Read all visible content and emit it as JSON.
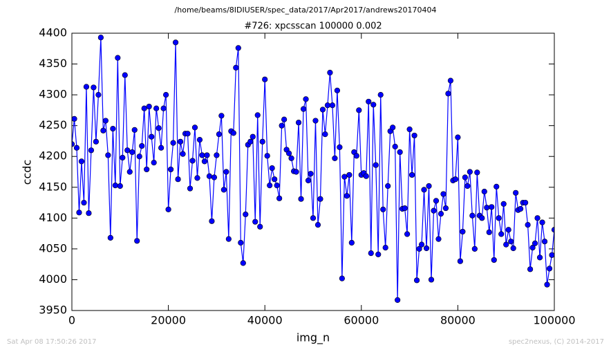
{
  "chart_data": {
    "type": "line",
    "suptitle": "/home/beams/8IDIUSER/spec_data/2017/Apr2017/andrews20170404",
    "title": "#726: xpcsscan 100000 0.002",
    "xlabel": "img_n",
    "ylabel": "ccdc",
    "footer_left": "Sat Apr 08 17:50:26 2017",
    "footer_right": "spec2nexus, (C) 2014-2017",
    "xlim": [
      0,
      100000
    ],
    "xticks": [
      0,
      20000,
      40000,
      60000,
      80000,
      100000
    ],
    "ylim": [
      3950,
      4400
    ],
    "yticks": [
      3950,
      4000,
      4050,
      4100,
      4150,
      4200,
      4250,
      4300,
      4350,
      4400
    ],
    "grid": false,
    "x": [
      0,
      500,
      1000,
      1500,
      2000,
      2500,
      3000,
      3500,
      4000,
      4500,
      5000,
      5500,
      6000,
      6500,
      7000,
      7500,
      8000,
      8500,
      9000,
      9500,
      10000,
      10500,
      11000,
      11500,
      12000,
      12500,
      13000,
      13500,
      14000,
      14500,
      15000,
      15500,
      16000,
      16500,
      17000,
      17500,
      18000,
      18500,
      19000,
      19500,
      20000,
      20500,
      21000,
      21500,
      22000,
      22500,
      23000,
      23500,
      24000,
      24500,
      25000,
      25500,
      26000,
      26500,
      27000,
      27500,
      28000,
      28500,
      29000,
      29500,
      30000,
      30500,
      31000,
      31500,
      32000,
      32500,
      33000,
      33500,
      34000,
      34500,
      35000,
      35500,
      36000,
      36500,
      37000,
      37500,
      38000,
      38500,
      39000,
      39500,
      40000,
      40500,
      41000,
      41500,
      42000,
      42500,
      43000,
      43500,
      44000,
      44500,
      45000,
      45500,
      46000,
      46500,
      47000,
      47500,
      48000,
      48500,
      49000,
      49500,
      50000,
      50500,
      51000,
      51500,
      52000,
      52500,
      53000,
      53500,
      54000,
      54500,
      55000,
      55500,
      56000,
      56500,
      57000,
      57500,
      58000,
      58500,
      59000,
      59500,
      60000,
      60500,
      61000,
      61500,
      62000,
      62500,
      63000,
      63500,
      64000,
      64500,
      65000,
      65500,
      66000,
      66500,
      67000,
      67500,
      68000,
      68500,
      69000,
      69500,
      70000,
      70500,
      71000,
      71500,
      72000,
      72500,
      73000,
      73500,
      74000,
      74500,
      75000,
      75500,
      76000,
      76500,
      77000,
      77500,
      78000,
      78500,
      79000,
      79500,
      80000,
      80500,
      81000,
      81500,
      82000,
      82500,
      83000,
      83500,
      84000,
      84500,
      85000,
      85500,
      86000,
      86500,
      87000,
      87500,
      88000,
      88500,
      89000,
      89500,
      90000,
      90500,
      91000,
      91500,
      92000,
      92500,
      93000,
      93500,
      94000,
      94500,
      95000,
      95500,
      96000,
      96500,
      97000,
      97500,
      98000,
      98500,
      99000,
      99500,
      100000
    ],
    "series": [
      {
        "name": "ccdc",
        "color": "#0000ff",
        "values": [
          4220,
          4261,
          4214,
          4109,
          4192,
          4125,
          4313,
          4108,
          4210,
          4312,
          4224,
          4300,
          4393,
          4242,
          4258,
          4202,
          4068,
          4245,
          4153,
          4360,
          4152,
          4198,
          4332,
          4210,
          4175,
          4207,
          4243,
          4063,
          4200,
          4217,
          4278,
          4179,
          4281,
          4232,
          4190,
          4278,
          4246,
          4214,
          4278,
          4300,
          4114,
          4179,
          4222,
          4385,
          4163,
          4224,
          4204,
          4237,
          4237,
          4148,
          4193,
          4247,
          4165,
          4227,
          4202,
          4192,
          4202,
          4168,
          4095,
          4166,
          4202,
          4236,
          4266,
          4146,
          4175,
          4066,
          4241,
          4238,
          4344,
          4376,
          4060,
          4027,
          4106,
          4219,
          4224,
          4232,
          4094,
          4267,
          4086,
          4224,
          4325,
          4201,
          4153,
          4181,
          4163,
          4153,
          4132,
          4250,
          4260,
          4211,
          4205,
          4197,
          4176,
          4175,
          4255,
          4131,
          4277,
          4293,
          4161,
          4172,
          4100,
          4258,
          4089,
          4131,
          4276,
          4236,
          4283,
          4336,
          4283,
          4197,
          4307,
          4215,
          4002,
          4167,
          4136,
          4170,
          4060,
          4207,
          4201,
          4275,
          4170,
          4173,
          4168,
          4289,
          4043,
          4284,
          4186,
          4041,
          4300,
          4114,
          4052,
          4152,
          4241,
          4247,
          4216,
          3967,
          4207,
          4115,
          4116,
          4074,
          4244,
          4170,
          4234,
          3999,
          4050,
          4057,
          4146,
          4051,
          4152,
          4000,
          4112,
          4128,
          4066,
          4107,
          4139,
          4116,
          4302,
          4323,
          4161,
          4163,
          4231,
          4030,
          4078,
          4166,
          4152,
          4175,
          4104,
          4050,
          4174,
          4104,
          4100,
          4143,
          4117,
          4077,
          4118,
          4032,
          4151,
          4100,
          4074,
          4123,
          4057,
          4081,
          4062,
          4051,
          4141,
          4113,
          4115,
          4125,
          4125,
          4089,
          4017,
          4052,
          4059,
          4100,
          4036,
          4093,
          4062,
          3992,
          4018,
          4040,
          4081
        ]
      }
    ]
  }
}
